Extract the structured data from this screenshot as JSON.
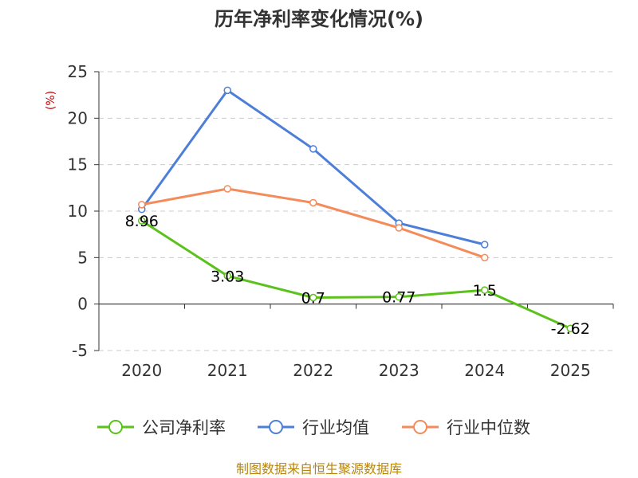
{
  "chart_data": {
    "type": "line",
    "title": "历年净利率变化情况(%)",
    "ylabel": "(%)",
    "xlabel": "",
    "categories": [
      "2020",
      "2021",
      "2022",
      "2023",
      "2024",
      "2025"
    ],
    "ylim": [
      -5,
      25
    ],
    "yticks": [
      25,
      20,
      15,
      10,
      5,
      0,
      -5
    ],
    "grid": true,
    "legend_position": "bottom",
    "series": [
      {
        "name": "公司净利率",
        "color": "#5bc21c",
        "values": [
          8.96,
          3.03,
          0.7,
          0.77,
          1.5,
          -2.62
        ],
        "labels": [
          "8.96",
          "3.03",
          "0.7",
          "0.77",
          "1.5",
          "-2.62"
        ]
      },
      {
        "name": "行业均值",
        "color": "#4e7fd8",
        "values": [
          10.2,
          23.0,
          16.7,
          8.7,
          6.4,
          null
        ]
      },
      {
        "name": "行业中位数",
        "color": "#f48b5a",
        "values": [
          10.7,
          12.4,
          10.9,
          8.2,
          5.0,
          null
        ]
      }
    ],
    "source": "制图数据来自恒生聚源数据库"
  }
}
